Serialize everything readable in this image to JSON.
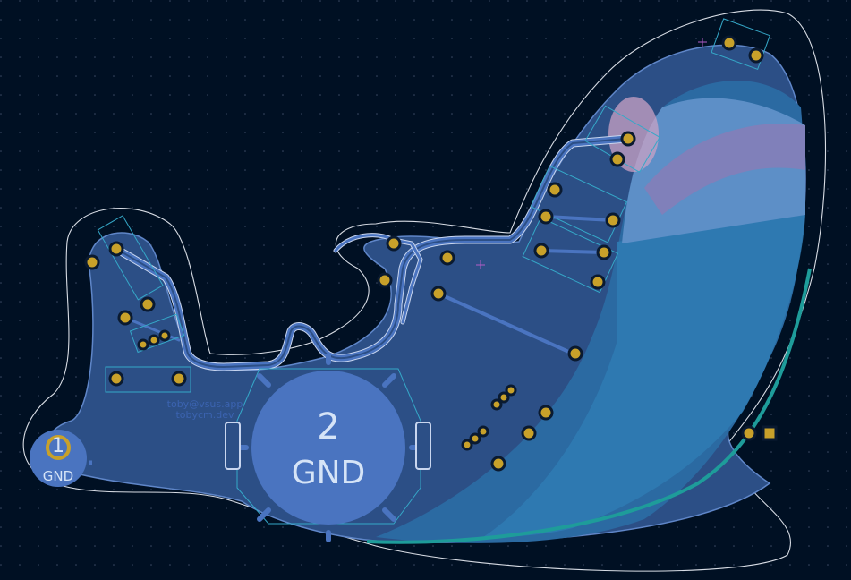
{
  "board": {
    "silkscreen_line1": "toby@vsus.app",
    "silkscreen_line2": "tobycm.dev"
  },
  "pads": {
    "gnd_small": {
      "number": "1",
      "net": "GND"
    },
    "gnd_large": {
      "number": "2",
      "net": "GND"
    }
  },
  "colors": {
    "background": "#001023",
    "copper_pour": "#2c4f86",
    "trace": "#4a74c0",
    "trace_outline": "#c9d6ef",
    "pad_ring": "#c8a12a",
    "board_edge": "#d7dce4",
    "courtyard": "#35a8c8",
    "whale_body": "#2b6aa2",
    "whale_light": "#5d8fc7",
    "mouth": "#8a7cb6"
  },
  "icons": [
    "crosshair-marker",
    "pad-icon",
    "via-icon"
  ]
}
